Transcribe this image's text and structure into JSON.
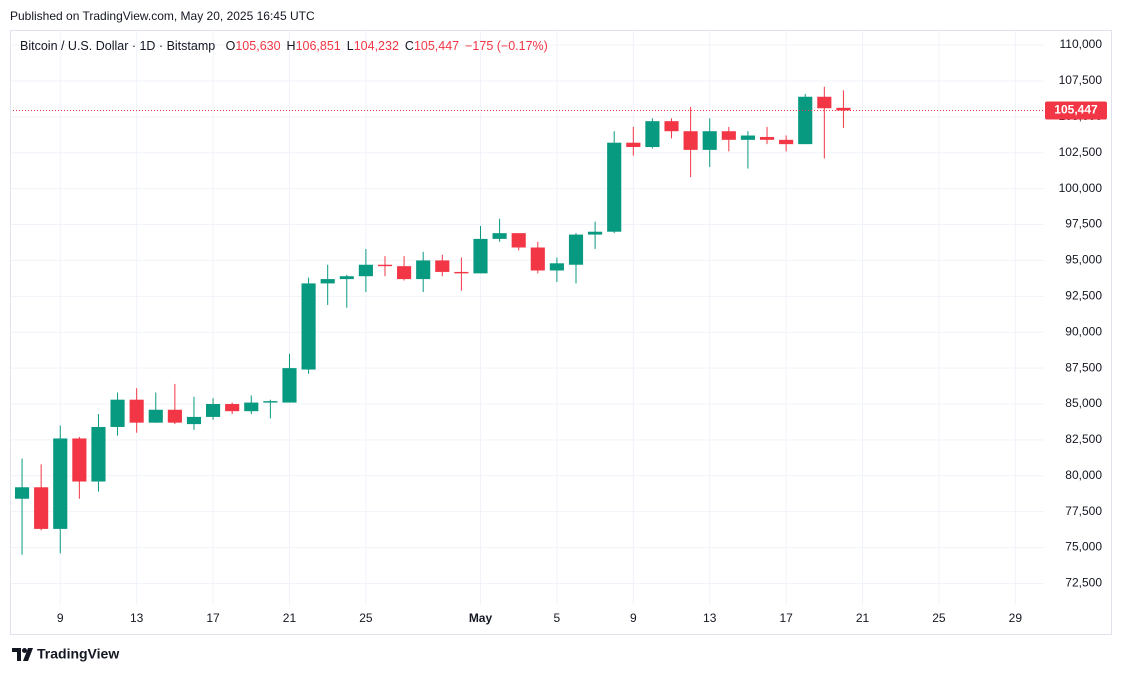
{
  "published": "Published on TradingView.com, May 20, 2025 16:45 UTC",
  "brand": "TradingView",
  "chart_data": {
    "type": "candlestick",
    "title": "Bitcoin / U.S. Dollar · 1D · Bitstamp",
    "ohlc_prefixes": [
      "O",
      "H",
      "L",
      "C"
    ],
    "ohlc_labels": [
      "105,630",
      "106,851",
      "104,232",
      "105,447"
    ],
    "change_label": "−175 (−0.17%)",
    "last_label": "105,447",
    "up_color": "#089981",
    "down_color": "#f23645",
    "grid": true,
    "categories": [
      null,
      null,
      "9",
      null,
      null,
      null,
      "13",
      null,
      null,
      null,
      "17",
      null,
      null,
      null,
      "21",
      null,
      null,
      null,
      "25",
      null,
      null,
      null,
      null,
      null,
      "May",
      null,
      null,
      null,
      "5",
      null,
      null,
      null,
      "9",
      null,
      null,
      null,
      "13",
      null,
      null,
      null,
      "17",
      null,
      null,
      null,
      "21",
      null,
      null,
      null,
      "25",
      null,
      null,
      null,
      "29",
      null
    ],
    "open": [
      78400,
      79200,
      76300,
      82600,
      79600,
      83400,
      85300,
      83700,
      84600,
      83600,
      84100,
      85000,
      84500,
      85100,
      85100,
      87400,
      93400,
      93700,
      93900,
      94700,
      94600,
      93700,
      95000,
      94200,
      94100,
      96500,
      96900,
      95900,
      94300,
      94700,
      96800,
      97000,
      103200,
      102900,
      104700,
      104000,
      102700,
      104000,
      103400,
      103600,
      103400,
      103100,
      106400,
      105630,
      null,
      null,
      null,
      null,
      null,
      null,
      null,
      null,
      null,
      null
    ],
    "high": [
      81200,
      80800,
      83500,
      82700,
      84300,
      85800,
      86100,
      85800,
      86400,
      85500,
      85400,
      85100,
      85600,
      85300,
      88500,
      93800,
      94700,
      94000,
      95800,
      95300,
      95300,
      95600,
      95400,
      95200,
      97400,
      97900,
      96900,
      96300,
      95200,
      96900,
      97700,
      104000,
      104300,
      104900,
      104900,
      105700,
      104900,
      104300,
      104000,
      104300,
      103700,
      106600,
      107100,
      106851,
      null,
      null,
      null,
      null,
      null,
      null,
      null,
      null,
      null,
      null
    ],
    "low": [
      74500,
      76200,
      74600,
      78400,
      78900,
      82800,
      83000,
      83700,
      83600,
      83200,
      83900,
      84300,
      84300,
      84000,
      85100,
      87100,
      91900,
      91700,
      92800,
      93900,
      93600,
      92800,
      93900,
      92900,
      94100,
      96300,
      95700,
      94100,
      93500,
      93400,
      95800,
      96900,
      102300,
      102800,
      103500,
      100800,
      101500,
      102600,
      101400,
      103100,
      102600,
      103100,
      102100,
      104232,
      null,
      null,
      null,
      null,
      null,
      null,
      null,
      null,
      null,
      null
    ],
    "close": [
      79200,
      76300,
      82600,
      79600,
      83400,
      85300,
      83700,
      84600,
      83700,
      84100,
      85000,
      84500,
      85100,
      85200,
      87500,
      93400,
      93700,
      93900,
      94700,
      94600,
      93700,
      95000,
      94200,
      94100,
      96500,
      96900,
      95900,
      94300,
      94800,
      96800,
      97000,
      103200,
      102900,
      104700,
      104000,
      102700,
      104000,
      103400,
      103700,
      103400,
      103100,
      106400,
      105600,
      105447,
      null,
      null,
      null,
      null,
      null,
      null,
      null,
      null,
      null,
      null
    ],
    "ylim": [
      71000,
      111050
    ],
    "yticks": [
      {
        "value": 72500,
        "label": "72,500"
      },
      {
        "value": 75000,
        "label": "75,000"
      },
      {
        "value": 77500,
        "label": "77,500"
      },
      {
        "value": 80000,
        "label": "80,000"
      },
      {
        "value": 82500,
        "label": "82,500"
      },
      {
        "value": 85000,
        "label": "85,000"
      },
      {
        "value": 87500,
        "label": "87,500"
      },
      {
        "value": 90000,
        "label": "90,000"
      },
      {
        "value": 92500,
        "label": "92,500"
      },
      {
        "value": 95000,
        "label": "95,000"
      },
      {
        "value": 97500,
        "label": "97,500"
      },
      {
        "value": 100000,
        "label": "100,000"
      },
      {
        "value": 102500,
        "label": "102,500"
      },
      {
        "value": 105000,
        "label": "105,000"
      },
      {
        "value": 107500,
        "label": "107,500"
      },
      {
        "value": 110000,
        "label": "110,000"
      }
    ]
  }
}
